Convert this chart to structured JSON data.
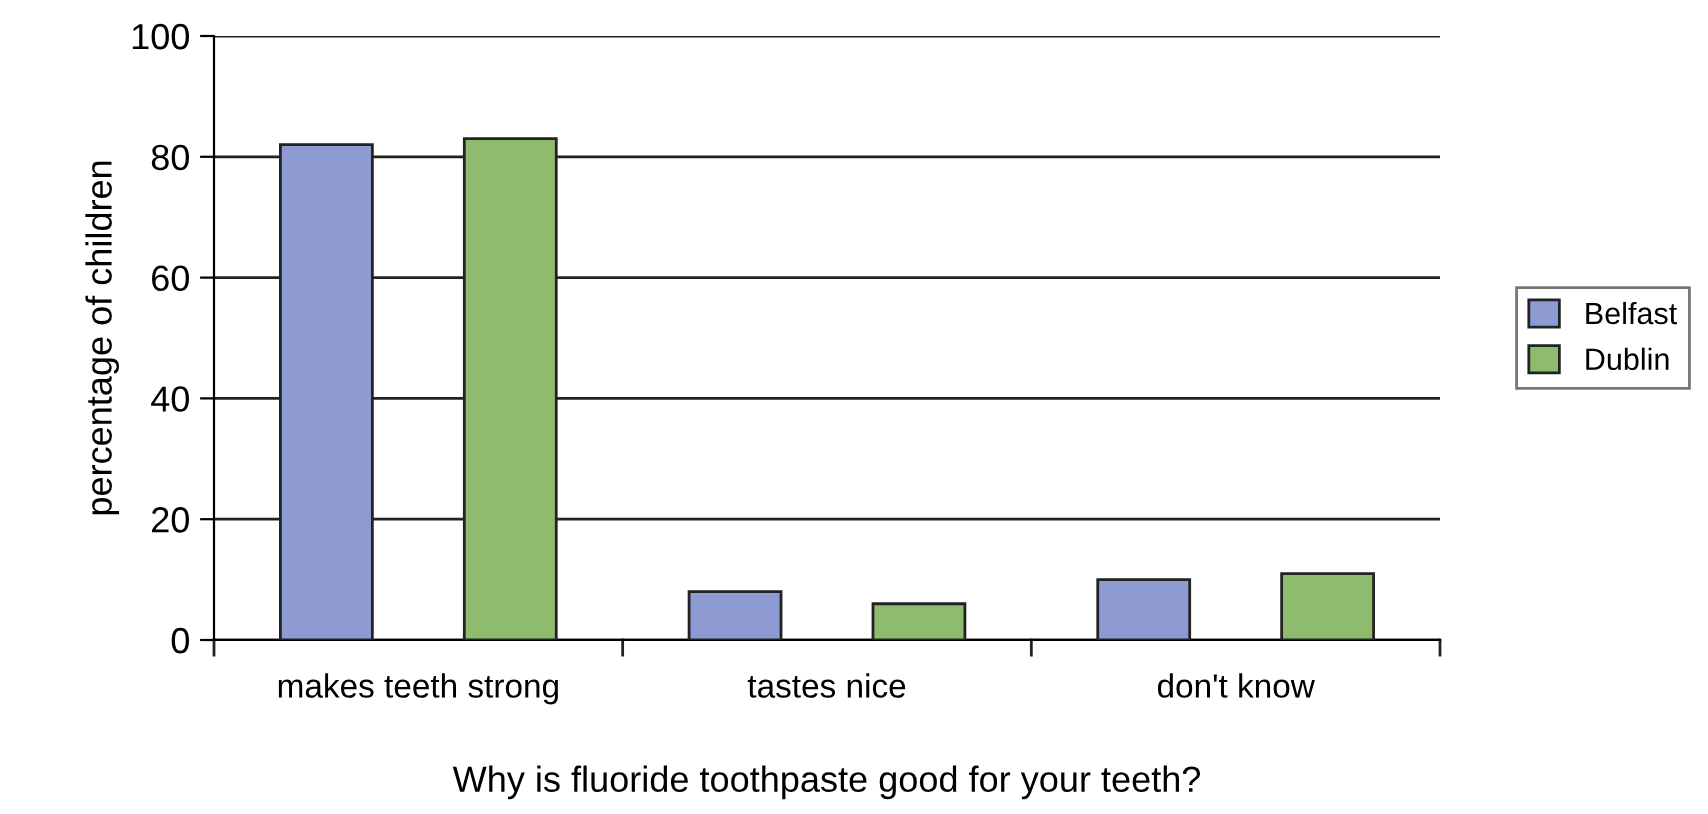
{
  "chart_data": {
    "type": "bar",
    "xlabel": "Why is fluoride toothpaste good for your teeth?",
    "ylabel": "percentage of children",
    "categories": [
      "makes teeth strong",
      "tastes nice",
      "don't know"
    ],
    "series": [
      {
        "name": "Belfast",
        "color": "#8e9bd3",
        "values": [
          82,
          8,
          10
        ]
      },
      {
        "name": "Dublin",
        "color": "#8fbb6e",
        "values": [
          83,
          6,
          11
        ]
      }
    ],
    "ylim": [
      0,
      100
    ],
    "yticks": [
      0,
      20,
      40,
      60,
      80,
      100
    ],
    "grid": "y",
    "legend": "right"
  }
}
